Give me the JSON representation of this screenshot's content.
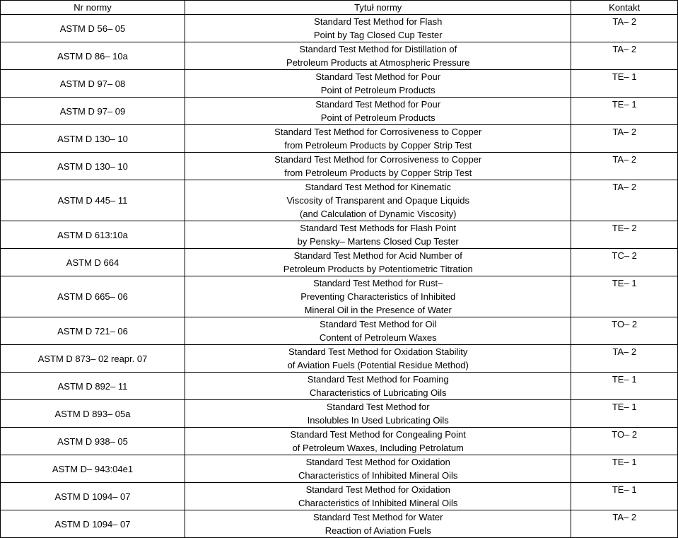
{
  "columns": [
    "Nr normy",
    "Tytuł normy",
    "Kontakt"
  ],
  "rows": [
    {
      "nr": "ASTM D 56– 05",
      "title": "Standard Test Method for Flash\nPoint by Tag Closed Cup Tester",
      "contact": "TA– 2"
    },
    {
      "nr": "ASTM D 86– 10a",
      "title": "Standard Test Method for Distillation of\nPetroleum Products at Atmospheric Pressure",
      "contact": "TA– 2"
    },
    {
      "nr": "ASTM D 97– 08",
      "title": "Standard Test Method for Pour\nPoint of Petroleum Products",
      "contact": "TE– 1"
    },
    {
      "nr": "ASTM D 97– 09",
      "title": "Standard Test Method for Pour\nPoint of Petroleum Products",
      "contact": "TE– 1"
    },
    {
      "nr": "ASTM D 130– 10",
      "title": "Standard Test Method for Corrosiveness to Copper\nfrom Petroleum Products by Copper Strip Test",
      "contact": "TA– 2"
    },
    {
      "nr": "ASTM D 130– 10",
      "title": "Standard Test Method for Corrosiveness to Copper\nfrom Petroleum Products by Copper Strip Test",
      "contact": "TA– 2"
    },
    {
      "nr": "ASTM D 445– 11",
      "title": "Standard Test Method for Kinematic\nViscosity of Transparent and Opaque Liquids\n(and Calculation of Dynamic Viscosity)",
      "contact": "TA– 2"
    },
    {
      "nr": "ASTM D 613:10a",
      "title": "Standard Test Methods for Flash Point\nby Pensky– Martens Closed Cup Tester",
      "contact": "TE– 2"
    },
    {
      "nr": "ASTM D 664",
      "title": "Standard Test Method for Acid Number of\nPetroleum Products by Potentiometric Titration",
      "contact": "TC– 2"
    },
    {
      "nr": "ASTM D 665– 06",
      "title": "Standard Test Method for Rust–\nPreventing Characteristics of Inhibited\nMineral Oil in the Presence of Water",
      "contact": "TE– 1"
    },
    {
      "nr": "ASTM D 721– 06",
      "title": "Standard Test Method for Oil\nContent of Petroleum Waxes",
      "contact": "TO– 2"
    },
    {
      "nr": "ASTM D 873– 02 reapr. 07",
      "title": "Standard Test Method for Oxidation Stability\nof Aviation Fuels (Potential Residue Method)",
      "contact": "TA– 2"
    },
    {
      "nr": "ASTM D 892– 11",
      "title": "Standard Test Method for Foaming\nCharacteristics of Lubricating Oils",
      "contact": "TE– 1"
    },
    {
      "nr": "ASTM D 893– 05a",
      "title": "Standard Test Method for\nInsolubles In Used Lubricating Oils",
      "contact": "TE– 1"
    },
    {
      "nr": "ASTM D 938– 05",
      "title": "Standard Test Method for Congealing Point\nof Petroleum Waxes, Including Petrolatum",
      "contact": "TO– 2"
    },
    {
      "nr": "ASTM D– 943:04e1",
      "title": "Standard Test Method for Oxidation\nCharacteristics of Inhibited Mineral Oils",
      "contact": "TE– 1"
    },
    {
      "nr": "ASTM D 1094– 07",
      "title": "Standard Test Method for Oxidation\nCharacteristics of Inhibited Mineral Oils",
      "contact": "TE– 1"
    },
    {
      "nr": "ASTM D 1094– 07",
      "title": "Standard Test Method for Water\nReaction of Aviation Fuels",
      "contact": "TA– 2"
    }
  ]
}
